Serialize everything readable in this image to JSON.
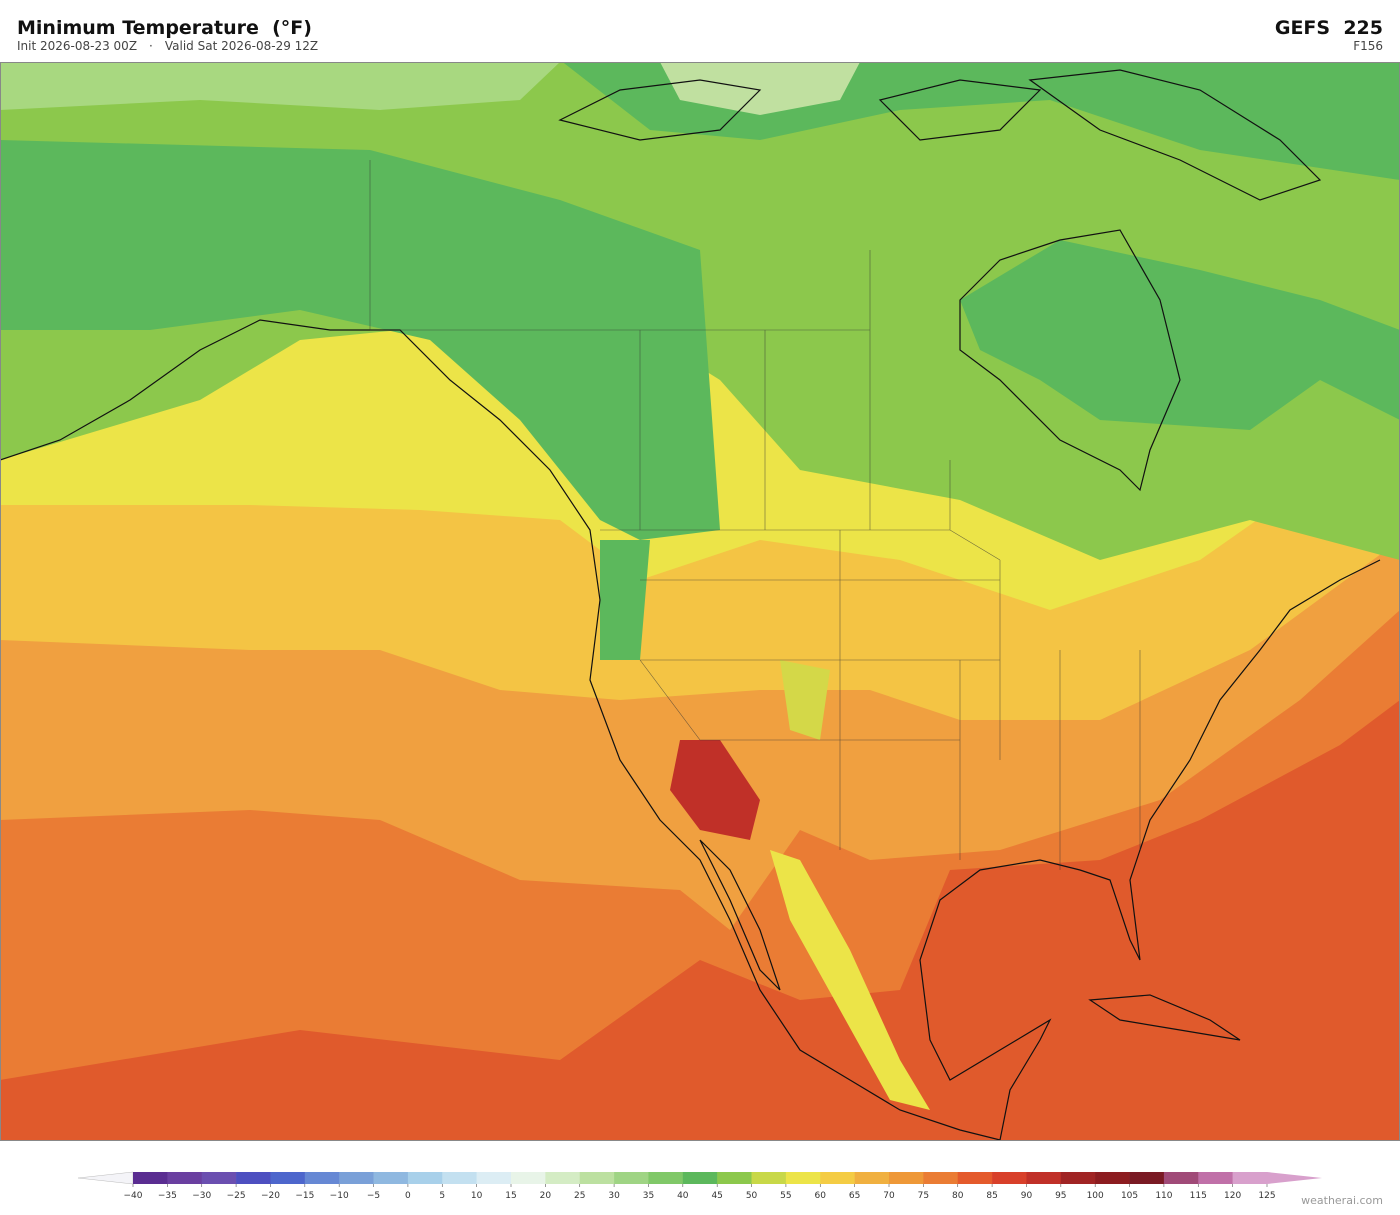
{
  "header": {
    "title": "Minimum Temperature  (°F)",
    "init": "Init 2026-08-23 00Z",
    "separator": "·",
    "valid": "Valid Sat 2026-08-29 12Z",
    "model": "GEFS  225",
    "forecast_hour": "F156"
  },
  "colorbar": {
    "ticks": [
      {
        "value": -40,
        "label": "−40"
      },
      {
        "value": -35,
        "label": "−35"
      },
      {
        "value": -30,
        "label": "−30"
      },
      {
        "value": -25,
        "label": "−25"
      },
      {
        "value": -20,
        "label": "−20"
      },
      {
        "value": -15,
        "label": "−15"
      },
      {
        "value": -10,
        "label": "−10"
      },
      {
        "value": -5,
        "label": "−5"
      },
      0,
      5,
      10,
      15,
      20,
      25,
      30,
      35,
      40,
      45,
      50,
      55,
      60,
      65,
      70,
      75,
      80,
      85,
      90,
      95,
      100,
      105,
      110,
      115,
      120,
      125
    ],
    "colors": [
      "#5a2d91",
      "#6a3fa0",
      "#6b4fb0",
      "#4d4fc0",
      "#4d66cc",
      "#6688d4",
      "#7aa0d8",
      "#8fb8e0",
      "#a8d0ea",
      "#c3e0f0",
      "#dcedf4",
      "#e8f4e8",
      "#d4ecc4",
      "#bce0a0",
      "#9fd484",
      "#80c868",
      "#5cb85c",
      "#8cc84c",
      "#c8d848",
      "#ece448",
      "#f4cc44",
      "#f0b040",
      "#ee9838",
      "#ea7c34",
      "#e45a2c",
      "#d8402a",
      "#c03028",
      "#a02424",
      "#8c1c20",
      "#7a1a24",
      "#a04a78",
      "#c070a8",
      "#d8a0cc"
    ],
    "under_color": "#f4f4f8",
    "over_color": "#d8a0cc"
  },
  "footer": {
    "watermark": "weatherai.com"
  }
}
